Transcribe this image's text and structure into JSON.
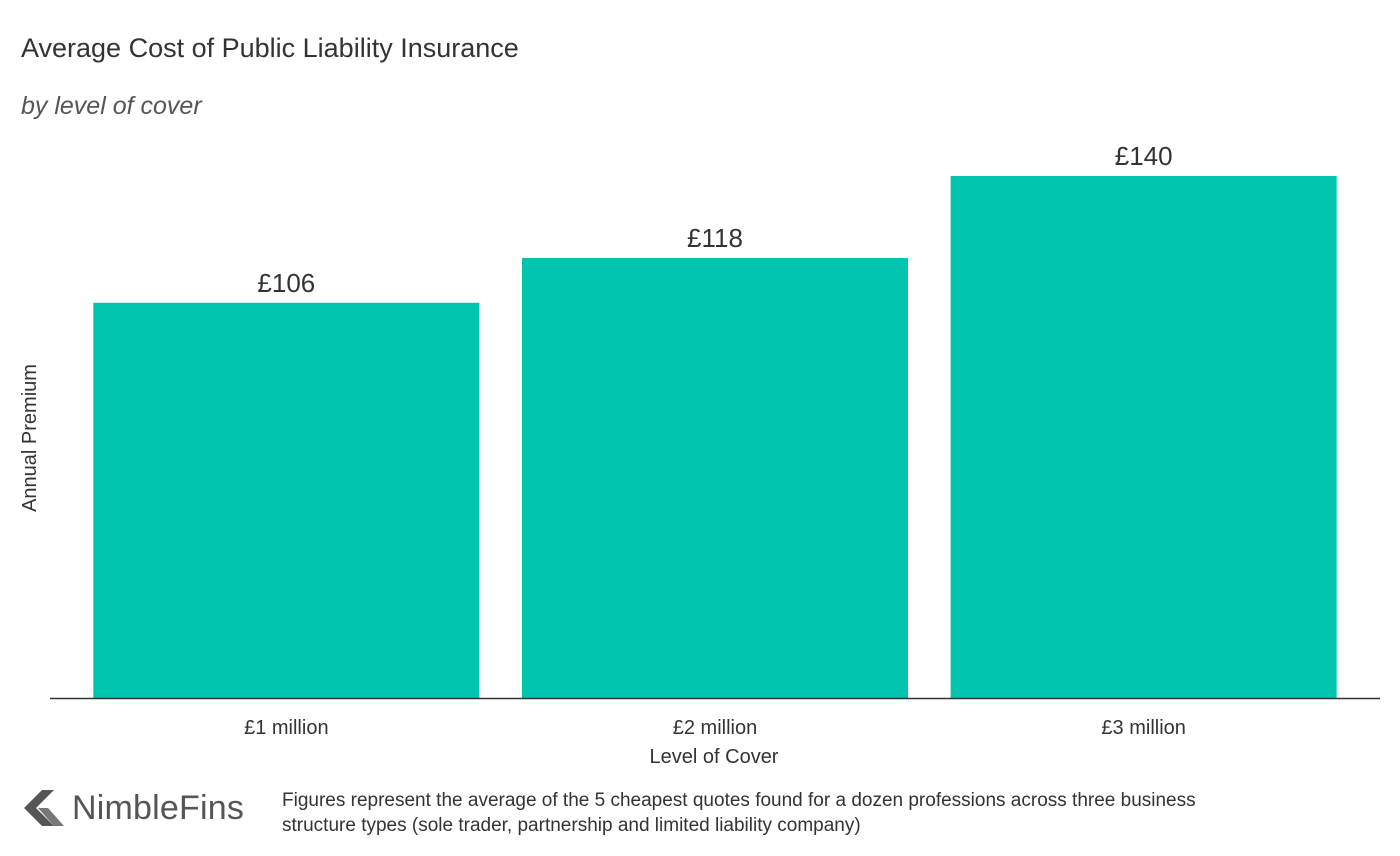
{
  "chart_data": {
    "type": "bar",
    "title": "Average Cost of Public Liability Insurance",
    "subtitle": "by level of cover",
    "categories": [
      "£1 million",
      "£2 million",
      "£3 million"
    ],
    "values": [
      106,
      118,
      140
    ],
    "value_labels": [
      "£106",
      "£118",
      "£140"
    ],
    "xlabel": "Level of Cover",
    "ylabel": "Annual Premium",
    "ylim": [
      0,
      140
    ],
    "grid": false,
    "bar_color": "#00c4ae",
    "axis_color": "#333333"
  },
  "brand": {
    "logo_text": "NimbleFins",
    "logo_icon": "chevron-left-icon"
  },
  "footnote": "Figures represent the average of the 5 cheapest quotes found for a dozen professions across three business structure types (sole trader, partnership and limited liability company)"
}
